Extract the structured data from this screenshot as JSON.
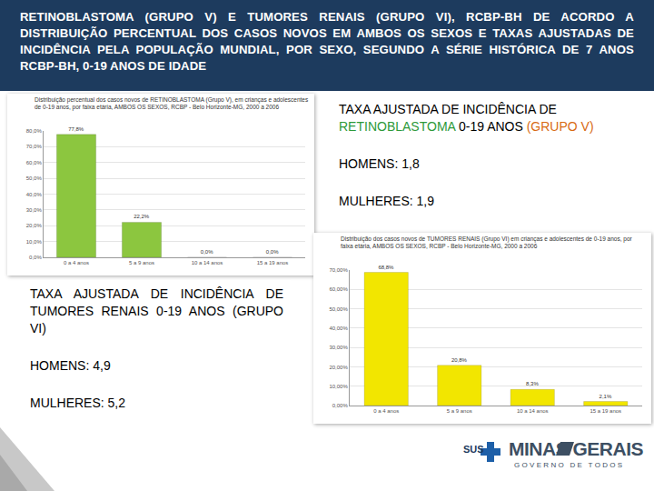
{
  "header": "RETINOBLASTOMA (GRUPO V) E TUMORES RENAIS (GRUPO VI), RCBP-BH DE ACORDO A DISTRIBUIÇÃO PERCENTUAL DOS CASOS NOVOS EM AMBOS OS SEXOS E TAXAS AJUSTADAS DE INCIDÊNCIA PELA POPULAÇÃO MUNDIAL, POR SEXO, SEGUNDO A SÉRIE HISTÓRICA DE 7 ANOS RCBP-BH, 0-19 ANOS DE IDADE",
  "boxes": [
    {
      "title_parts": [
        {
          "text": "TAXA AJUSTADA DE INCIDÊNCIA DE "
        },
        {
          "text": "RETINOBLASTOMA",
          "color": "#2e9a3a"
        },
        {
          "text": " 0-19 ANOS "
        },
        {
          "text": "(GRUPO V)",
          "color": "#d86a12"
        }
      ],
      "lines": [
        "HOMENS: 1,8",
        "MULHERES: 1,9"
      ]
    },
    {
      "title_parts": [
        {
          "text": "TAXA AJUSTADA DE INCIDÊNCIA DE TUMORES RENAIS 0-19 ANOS (GRUPO VI)"
        }
      ],
      "lines": [
        "HOMENS: 4,9",
        "MULHERES: 5,2"
      ]
    }
  ],
  "footer": [
    "SUS",
    "MINAS GERAIS",
    "GOVERNO DE TODOS"
  ],
  "chart_data": [
    {
      "type": "bar",
      "title": "Distribuição percentual dos casos novos de RETINOBLASTOMA (Grupo V), em crianças e adolescentes de 0-19 anos, por faixa etária, AMBOS OS SEXOS, RCBP - Belo Horizonte-MG, 2000 a 2006",
      "categories": [
        "0 a 4 anos",
        "5 a 9 anos",
        "10 a 14 anos",
        "15 a 19 anos"
      ],
      "values": [
        77.8,
        22.2,
        0,
        0
      ],
      "value_labels": [
        "77,8%",
        "22,2%",
        "0,0%",
        "0,0%"
      ],
      "data_labels": true,
      "color": "#8cc63f",
      "ylim": [
        0,
        80
      ],
      "yticks": [
        {
          "value": 0,
          "label": "0,0%"
        },
        {
          "value": 10,
          "label": "10,0%"
        },
        {
          "value": 20,
          "label": "20,0%"
        },
        {
          "value": 30,
          "label": "30,0%"
        },
        {
          "value": 40,
          "label": "40,0%"
        },
        {
          "value": 50,
          "label": "50,0%"
        },
        {
          "value": 60,
          "label": "60,0%"
        },
        {
          "value": 70,
          "label": "70,0%"
        },
        {
          "value": 80,
          "label": "80,0%"
        }
      ],
      "grid": true
    },
    {
      "type": "bar",
      "title": "Distribuição dos casos novos de TUMORES RENAIS (Grupo VI) em crianças e adolescentes de 0-19 anos, por faixa etária, AMBOS OS SEXOS, RCBP - Belo Horizonte-MG, 2000 a 2006",
      "categories": [
        "0 a 4 anos",
        "5 a 9 anos",
        "10 a 14 anos",
        "15 a 19 anos"
      ],
      "values": [
        68.8,
        20.8,
        8.3,
        2.1
      ],
      "value_labels": [
        "68,8%",
        "20,8%",
        "8,3%",
        "2,1%"
      ],
      "data_labels": true,
      "color": "#f2e600",
      "ylim": [
        0,
        70
      ],
      "yticks": [
        {
          "value": 0,
          "label": "0,00%"
        },
        {
          "value": 10,
          "label": "10,00%"
        },
        {
          "value": 20,
          "label": "20,00%"
        },
        {
          "value": 30,
          "label": "30,00%"
        },
        {
          "value": 40,
          "label": "40,00%"
        },
        {
          "value": 50,
          "label": "50,00%"
        },
        {
          "value": 60,
          "label": "60,00%"
        },
        {
          "value": 70,
          "label": "70,00%"
        }
      ],
      "grid": true
    }
  ]
}
